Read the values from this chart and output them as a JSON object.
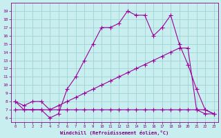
{
  "xlabel": "Windchill (Refroidissement éolien,°C)",
  "x_values": [
    0,
    1,
    2,
    3,
    4,
    5,
    6,
    7,
    8,
    9,
    10,
    11,
    12,
    13,
    14,
    15,
    16,
    17,
    18,
    19,
    20,
    21,
    22,
    23
  ],
  "line1_y": [
    8,
    7,
    7,
    7,
    6,
    6.5,
    9.5,
    11,
    13,
    15,
    17,
    17,
    17.5,
    19,
    18.5,
    18.5,
    16,
    17,
    18.5,
    15,
    12.5,
    9.5,
    7,
    6.5
  ],
  "line2_y": [
    8,
    7.5,
    8,
    8,
    7,
    7.5,
    8,
    8.5,
    9,
    9.5,
    10,
    10.5,
    11,
    11.5,
    12,
    12.5,
    13,
    13.5,
    14,
    14.5,
    14.5,
    7,
    6.5,
    6.5
  ],
  "line3_y": [
    7,
    7,
    7,
    7,
    7,
    7,
    7,
    7,
    7,
    7,
    7,
    7,
    7,
    7,
    7,
    7,
    7,
    7,
    7,
    7,
    7,
    7,
    7,
    6.5
  ],
  "line_color": "#990099",
  "bg_color": "#c8eef0",
  "grid_color": "#99cccc",
  "text_color": "#800080",
  "ylim": [
    5.5,
    20
  ],
  "xlim": [
    -0.5,
    23.5
  ],
  "yticks": [
    6,
    7,
    8,
    9,
    10,
    11,
    12,
    13,
    14,
    15,
    16,
    17,
    18,
    19
  ],
  "xticks": [
    0,
    1,
    2,
    3,
    4,
    5,
    6,
    7,
    8,
    9,
    10,
    11,
    12,
    13,
    14,
    15,
    16,
    17,
    18,
    19,
    20,
    21,
    22,
    23
  ],
  "marker": "+",
  "markersize": 4,
  "linewidth": 0.8
}
